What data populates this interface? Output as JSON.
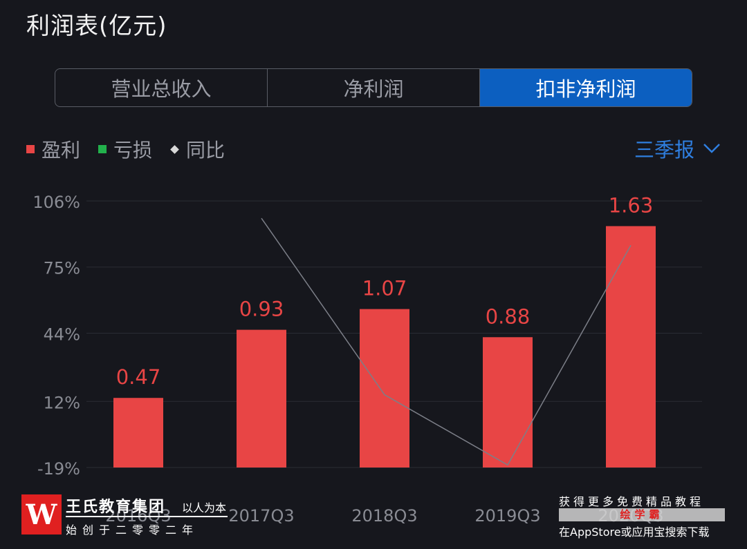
{
  "header": {
    "title": "利润表(亿元)"
  },
  "tabs": [
    {
      "label": "营业总收入",
      "active": false
    },
    {
      "label": "净利润",
      "active": false
    },
    {
      "label": "扣非净利润",
      "active": true
    }
  ],
  "legend": {
    "profit": {
      "label": "盈利",
      "color": "#e84545"
    },
    "loss": {
      "label": "亏损",
      "color": "#22b14c"
    },
    "yoy": {
      "label": "同比",
      "color": "#d8d8d8"
    }
  },
  "period_selector": {
    "label": "三季报",
    "icon": "chevron-down-icon"
  },
  "chart_data": {
    "type": "bar",
    "categories": [
      "2016Q3",
      "2017Q3",
      "2018Q3",
      "2019Q3",
      "2020Q3"
    ],
    "series": [
      {
        "name": "盈利",
        "values": [
          0.47,
          0.93,
          1.07,
          0.88,
          1.63
        ],
        "axis": "left"
      },
      {
        "name": "同比",
        "type": "line",
        "values": [
          null,
          97.9,
          15.1,
          -17.8,
          85.2
        ],
        "axis": "right"
      }
    ],
    "data_labels": [
      "0.47",
      "0.93",
      "1.07",
      "0.88",
      "1.63"
    ],
    "y_ticks": [
      "106%",
      "75%",
      "44%",
      "12%",
      "-19%"
    ],
    "y_tick_values": [
      106,
      75,
      44,
      12,
      -19
    ],
    "ylim_pct": [
      -19,
      106
    ],
    "ylim_value": [
      0,
      1.8
    ],
    "grid": true,
    "legend_position": "top-left",
    "colors": {
      "bar": "#e84545",
      "line": "#7c7f88",
      "label": "#e84545",
      "tick": "#8a8c94"
    }
  },
  "watermark_left": {
    "logo": "W",
    "name": "王氏教育集团",
    "motto": "以人为本",
    "sub": "始创于二零零二年"
  },
  "watermark_right": {
    "line1": "获得更多免费精品教程",
    "brand": "绘学霸",
    "line3": "在AppStore或应用宝搜索下载"
  }
}
